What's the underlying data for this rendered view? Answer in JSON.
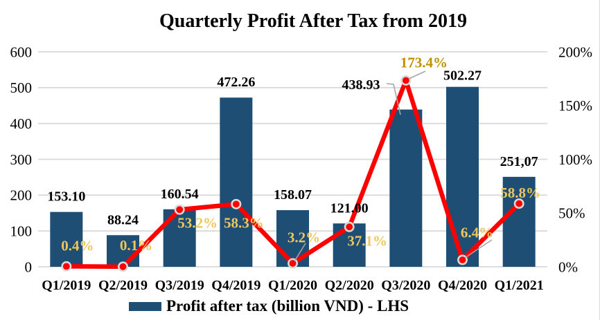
{
  "title": "Quarterly Profit After Tax from 2019",
  "legend": {
    "label": "Profit after tax (billion VND) - LHS"
  },
  "colors": {
    "bar": "#1f4e74",
    "line": "#fe0000",
    "marker_fill": "#fe0000",
    "marker_ring": "#d9d9d9",
    "grid": "#d9d9d9",
    "leader": "#a6a6a6",
    "value_label": "#000000",
    "pct_label": "#efc65d",
    "pct_label_dark": "#bf9000",
    "axis_text": "#000000"
  },
  "chart_data": {
    "type": "bar+line combo",
    "title": "Quarterly Profit After Tax from 2019",
    "categories": [
      "Q1/2019",
      "Q2/2019",
      "Q3/2019",
      "Q4/2019",
      "Q1/2020",
      "Q2/2020",
      "Q3/2020",
      "Q4/2020",
      "Q1/2021"
    ],
    "series": [
      {
        "name": "Profit after tax (billion VND) - LHS",
        "type": "bar",
        "axis": "left",
        "values": [
          153.1,
          88.24,
          160.54,
          472.26,
          158.07,
          121.0,
          438.93,
          502.27,
          251.07
        ],
        "labels": [
          "153.10",
          "88.24",
          "160.54",
          "472.26",
          "158.07",
          "121.00",
          "438.93",
          "502.27",
          "251,07"
        ]
      },
      {
        "name": "",
        "type": "line",
        "axis": "right",
        "values": [
          0.4,
          0.1,
          53.2,
          58.3,
          3.2,
          37.1,
          173.4,
          6.4,
          58.8
        ],
        "labels": [
          "0.4%",
          "0.1%",
          "53.2%",
          "58.3%",
          "3.2%",
          "37.1%",
          "173.4%",
          "6.4%",
          "58.8%"
        ]
      }
    ],
    "left_axis": {
      "min": 0,
      "max": 600,
      "step": 100,
      "labels": [
        "0",
        "100",
        "200",
        "300",
        "400",
        "500",
        "600"
      ]
    },
    "right_axis": {
      "min": 0,
      "max": 200,
      "step": 50,
      "labels": [
        "0%",
        "50%",
        "100%",
        "150%",
        "200%"
      ]
    },
    "grid": true,
    "legend_position": "bottom"
  }
}
